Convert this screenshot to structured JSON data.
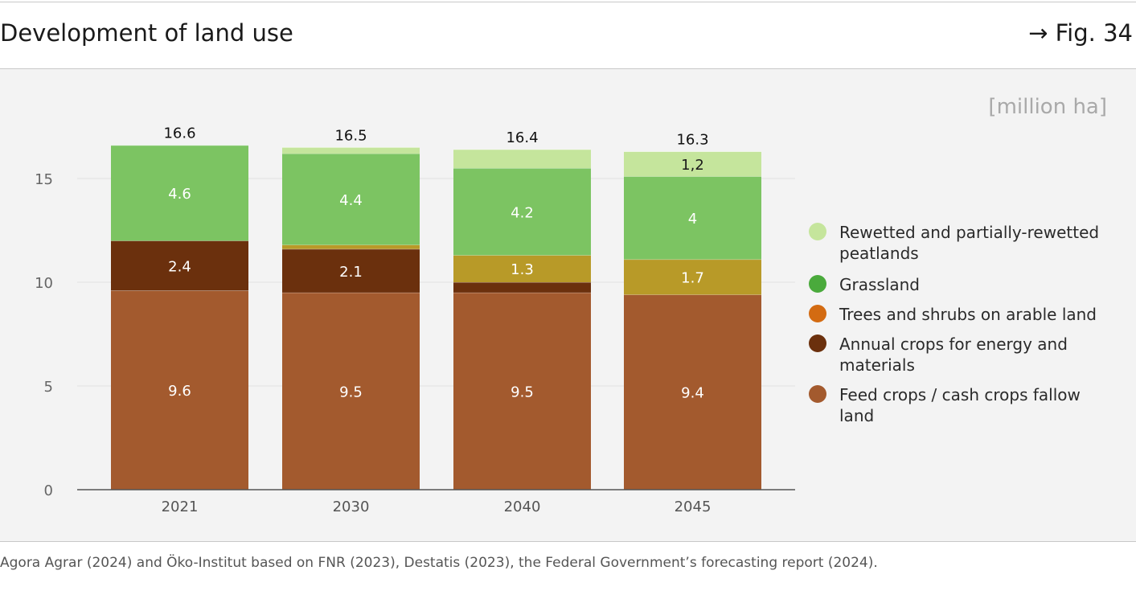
{
  "header": {
    "title": "Development of land use",
    "fig_ref": "→ Fig. 34"
  },
  "unit_label": "[million ha]",
  "colors": {
    "feed": "#a35a2e",
    "annual": "#6b300d",
    "trees": "#b89a28",
    "grass": "#7cc462",
    "peat": "#c5e59c"
  },
  "chart_data": {
    "type": "bar",
    "stacked": true,
    "title": "Development of land use",
    "ylabel": "[million ha]",
    "xlabel": "",
    "ylim": [
      0,
      17.5
    ],
    "yticks": [
      "0",
      "5",
      "10",
      "15"
    ],
    "categories": [
      "2021",
      "2030",
      "2040",
      "2045"
    ],
    "totals": [
      "16.6",
      "16.5",
      "16.4",
      "16.3"
    ],
    "series": [
      {
        "name": "Feed crops / cash crops fallow land",
        "key": "feed",
        "values": [
          9.6,
          9.5,
          9.5,
          9.4
        ],
        "labels": [
          "9.6",
          "9.5",
          "9.5",
          "9.4"
        ]
      },
      {
        "name": "Annual crops for energy and materials",
        "key": "annual",
        "values": [
          2.4,
          2.1,
          0.5,
          0
        ],
        "labels": [
          "2.4",
          "2.1",
          "",
          ""
        ]
      },
      {
        "name": "Trees and shrubs on arable land",
        "key": "trees",
        "values": [
          0,
          0.2,
          1.3,
          1.7
        ],
        "labels": [
          "",
          "",
          "1.3",
          "1.7"
        ]
      },
      {
        "name": "Grassland",
        "key": "grass",
        "values": [
          4.6,
          4.4,
          4.2,
          4.0
        ],
        "labels": [
          "4.6",
          "4.4",
          "4.2",
          "4"
        ]
      },
      {
        "name": "Rewetted and partially-rewetted peatlands",
        "key": "peat",
        "values": [
          0,
          0.3,
          0.9,
          1.2
        ],
        "labels": [
          "",
          "",
          "",
          "1,2"
        ]
      }
    ]
  },
  "legend": [
    {
      "label": "Rewetted and partially-rewetted peatlands",
      "color": "#c5e59c"
    },
    {
      "label": "Grassland",
      "color": "#4aaa3c"
    },
    {
      "label": "Trees and shrubs on arable land",
      "color": "#d36b12"
    },
    {
      "label": "Annual crops for energy and materials",
      "color": "#6b300d"
    },
    {
      "label": "Feed crops / cash crops fallow land",
      "color": "#a35a2e"
    }
  ],
  "source": "Agora Agrar (2024) and Öko-Institut based on FNR (2023), Destatis (2023), the Federal Government’s forecasting report (2024)."
}
